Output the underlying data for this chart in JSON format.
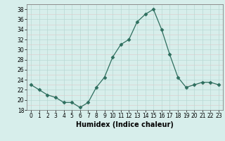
{
  "x": [
    0,
    1,
    2,
    3,
    4,
    5,
    6,
    7,
    8,
    9,
    10,
    11,
    12,
    13,
    14,
    15,
    16,
    17,
    18,
    19,
    20,
    21,
    22,
    23
  ],
  "y": [
    23,
    22,
    21,
    20.5,
    19.5,
    19.5,
    18.5,
    19.5,
    22.5,
    24.5,
    28.5,
    31,
    32,
    35.5,
    37,
    38,
    34,
    29,
    24.5,
    22.5,
    23,
    23.5,
    23.5,
    23
  ],
  "line_color": "#2e6e5e",
  "marker": "D",
  "marker_size": 2.5,
  "bg_color": "#d7eeeb",
  "major_grid_color": "#b8d8d4",
  "minor_grid_color": "#dfc8c8",
  "xlabel": "Humidex (Indice chaleur)",
  "ylim": [
    18,
    39
  ],
  "yticks": [
    18,
    20,
    22,
    24,
    26,
    28,
    30,
    32,
    34,
    36,
    38
  ],
  "xlim": [
    -0.5,
    23.5
  ],
  "xticks": [
    0,
    1,
    2,
    3,
    4,
    5,
    6,
    7,
    8,
    9,
    10,
    11,
    12,
    13,
    14,
    15,
    16,
    17,
    18,
    19,
    20,
    21,
    22,
    23
  ],
  "tick_labelsize": 5.5,
  "xlabel_fontsize": 7.0
}
